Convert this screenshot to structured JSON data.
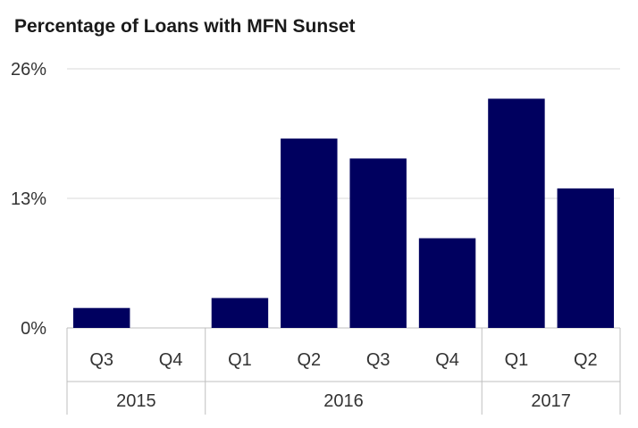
{
  "chart_data": {
    "type": "bar",
    "title": "Percentage of Loans with MFN Sunset",
    "xlabel": "",
    "ylabel": "",
    "ylim": [
      0,
      26
    ],
    "yticks": [
      "0%",
      "13%",
      "26%"
    ],
    "ytick_values": [
      0,
      13,
      26
    ],
    "grid": true,
    "legend": "none",
    "color": "#00005f",
    "categories": [
      "Q3",
      "Q4",
      "Q1",
      "Q2",
      "Q3",
      "Q4",
      "Q1",
      "Q2"
    ],
    "groups": [
      {
        "label": "2015",
        "count": 2
      },
      {
        "label": "2016",
        "count": 4
      },
      {
        "label": "2017",
        "count": 2
      }
    ],
    "values": [
      2,
      0,
      3,
      19,
      17,
      9,
      23,
      14
    ]
  }
}
